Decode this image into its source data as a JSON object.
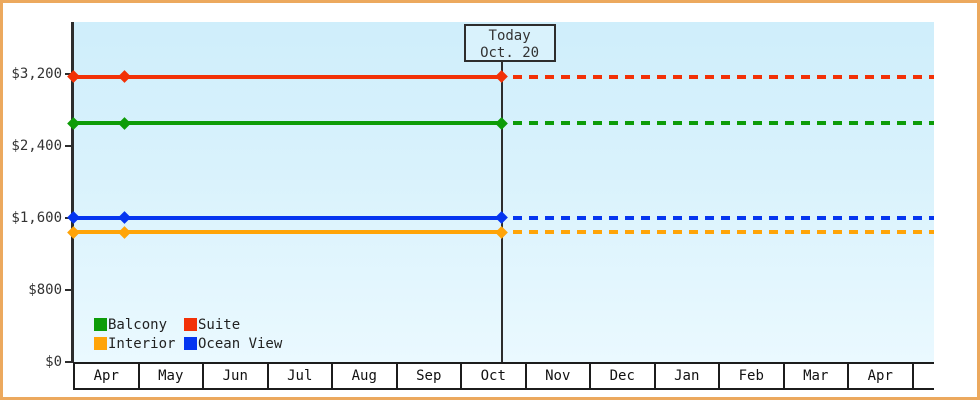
{
  "window": {
    "frame_color": "#eca95e",
    "background": "#ffffff"
  },
  "chart_data": {
    "type": "line",
    "title": "",
    "description": "Cruise cabin price history by category; solid lines are observed prices up to today, dotted lines are projected/flat prices after today",
    "x_categories": [
      "Apr",
      "May",
      "Jun",
      "Jul",
      "Aug",
      "Sep",
      "Oct",
      "Nov",
      "Dec",
      "Jan",
      "Feb",
      "Mar",
      "Apr",
      ""
    ],
    "ylim": [
      0,
      3200
    ],
    "yticks": [
      {
        "value": 3200,
        "label": "$3,200"
      },
      {
        "value": 2400,
        "label": "$2,400"
      },
      {
        "value": 1600,
        "label": "$1,600"
      },
      {
        "value": 800,
        "label": "$800"
      },
      {
        "value": 0,
        "label": "$0"
      }
    ],
    "grid": false,
    "legend_position": "bottom-left",
    "today": {
      "line1": "Today",
      "line2": "Oct. 20",
      "month_index": 6,
      "month_frac": 0.645
    },
    "series": [
      {
        "name": "Suite",
        "color": "#f23107",
        "value": 3170,
        "points": [
          {
            "m": 0,
            "f": 0.0
          },
          {
            "m": 0,
            "f": 0.8
          },
          {
            "m": 6,
            "f": 0.645
          }
        ]
      },
      {
        "name": "Balcony",
        "color": "#0d9c08",
        "value": 2650,
        "points": [
          {
            "m": 0,
            "f": 0.0
          },
          {
            "m": 0,
            "f": 0.8
          },
          {
            "m": 6,
            "f": 0.645
          }
        ]
      },
      {
        "name": "Ocean View",
        "color": "#0535f0",
        "value": 1600,
        "points": [
          {
            "m": 0,
            "f": 0.0
          },
          {
            "m": 0,
            "f": 0.8
          },
          {
            "m": 6,
            "f": 0.645
          }
        ]
      },
      {
        "name": "Interior",
        "color": "#ffa408",
        "value": 1440,
        "points": [
          {
            "m": 0,
            "f": 0.0
          },
          {
            "m": 0,
            "f": 0.8
          },
          {
            "m": 6,
            "f": 0.645
          }
        ]
      }
    ]
  },
  "legend": {
    "items": [
      {
        "label": "Balcony",
        "color": "#0d9c08"
      },
      {
        "label": "Suite",
        "color": "#f23107"
      },
      {
        "label": "Interior",
        "color": "#ffa408"
      },
      {
        "label": "Ocean View",
        "color": "#0535f0"
      }
    ]
  }
}
